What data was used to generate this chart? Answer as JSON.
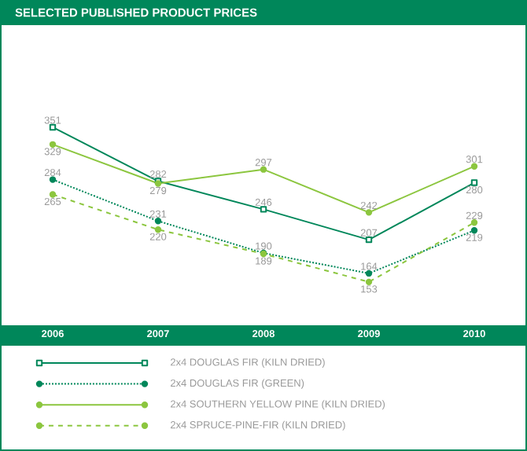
{
  "chart_data": {
    "type": "line",
    "title": "SELECTED PUBLISHED PRODUCT PRICES",
    "categories": [
      "2006",
      "2007",
      "2008",
      "2009",
      "2010"
    ],
    "series": [
      {
        "name": "2x4 DOUGLAS FIR (KILN DRIED)",
        "color": "#00875a",
        "values": [
          351,
          282,
          246,
          207,
          280
        ],
        "marker": "square",
        "line_style": "solid"
      },
      {
        "name": "2x4 DOUGLAS FIR (GREEN)",
        "color": "#00875a",
        "values": [
          284,
          231,
          190,
          164,
          219
        ],
        "marker": "circle",
        "line_style": "dotted"
      },
      {
        "name": "2x4 SOUTHERN YELLOW PINE (KILN DRIED)",
        "color": "#8cc63f",
        "values": [
          329,
          279,
          297,
          242,
          301
        ],
        "marker": "circle",
        "line_style": "solid"
      },
      {
        "name": "2x4 SPRUCE-PINE-FIR (KILN DRIED)",
        "color": "#8cc63f",
        "values": [
          265,
          220,
          189,
          153,
          229
        ],
        "marker": "circle",
        "line_style": "dashed"
      }
    ],
    "tick_labels": "x",
    "data_labels": true,
    "legend": "bottom"
  }
}
